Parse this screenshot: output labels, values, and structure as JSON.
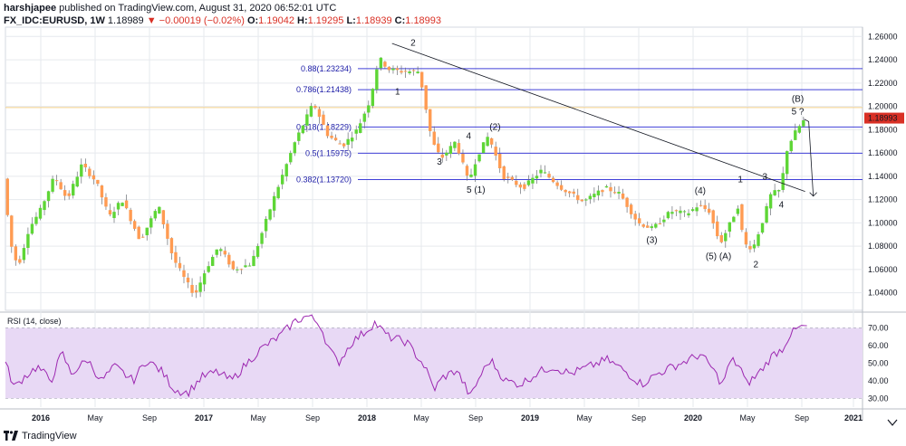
{
  "header": {
    "line1_user": "harshjapee",
    "line1_rest": "published on TradingView.com, August 31, 2020 06:52:01 UTC",
    "symbol": "FX_IDC:EURUSD, 1W",
    "last": "1.18989",
    "change": "▼ −0.00019 (−0.02%)",
    "o_label": "O:",
    "o": "1.19042",
    "h_label": "H:",
    "h": "1.19295",
    "l_label": "L:",
    "l": "1.18939",
    "c_label": "C:",
    "c": "1.18993"
  },
  "footer": {
    "brand": "TradingView"
  },
  "chart_data": [
    {
      "type": "candlestick",
      "symbol": "EURUSD",
      "interval": "1W",
      "title": "",
      "ylim": [
        1.025,
        1.268
      ],
      "y_ticks": [
        "1.26000",
        "1.24000",
        "1.22000",
        "1.20000",
        "1.18000",
        "1.16000",
        "1.14000",
        "1.12000",
        "1.10000",
        "1.08000",
        "1.06000",
        "1.04000"
      ],
      "x_labels": [
        "2016",
        "May",
        "Sep",
        "2017",
        "May",
        "Sep",
        "2018",
        "May",
        "Sep",
        "2019",
        "May",
        "Sep",
        "2020",
        "May",
        "Sep",
        "2021"
      ],
      "last_price_label": "1.18993",
      "path_points": [
        {
          "t": 0,
          "p": 1.138
        },
        {
          "t": 8,
          "p": 1.082
        },
        {
          "t": 16,
          "p": 1.062
        },
        {
          "t": 28,
          "p": 1.095
        },
        {
          "t": 40,
          "p": 1.11
        },
        {
          "t": 56,
          "p": 1.14
        },
        {
          "t": 70,
          "p": 1.12
        },
        {
          "t": 86,
          "p": 1.15
        },
        {
          "t": 102,
          "p": 1.135
        },
        {
          "t": 116,
          "p": 1.105
        },
        {
          "t": 130,
          "p": 1.12
        },
        {
          "t": 150,
          "p": 1.085
        },
        {
          "t": 170,
          "p": 1.115
        },
        {
          "t": 186,
          "p": 1.07
        },
        {
          "t": 200,
          "p": 1.05
        },
        {
          "t": 210,
          "p": 1.038
        },
        {
          "t": 222,
          "p": 1.06
        },
        {
          "t": 236,
          "p": 1.08
        },
        {
          "t": 252,
          "p": 1.06
        },
        {
          "t": 272,
          "p": 1.065
        },
        {
          "t": 296,
          "p": 1.12
        },
        {
          "t": 320,
          "p": 1.17
        },
        {
          "t": 340,
          "p": 1.203
        },
        {
          "t": 356,
          "p": 1.175
        },
        {
          "t": 372,
          "p": 1.166
        },
        {
          "t": 388,
          "p": 1.18
        },
        {
          "t": 402,
          "p": 1.205
        },
        {
          "t": 412,
          "p": 1.242
        },
        {
          "t": 422,
          "p": 1.232
        },
        {
          "t": 436,
          "p": 1.23
        },
        {
          "t": 456,
          "p": 1.23
        },
        {
          "t": 470,
          "p": 1.17
        },
        {
          "t": 480,
          "p": 1.155
        },
        {
          "t": 496,
          "p": 1.17
        },
        {
          "t": 510,
          "p": 1.135
        },
        {
          "t": 520,
          "p": 1.158
        },
        {
          "t": 532,
          "p": 1.175
        },
        {
          "t": 548,
          "p": 1.14
        },
        {
          "t": 570,
          "p": 1.13
        },
        {
          "t": 590,
          "p": 1.145
        },
        {
          "t": 612,
          "p": 1.13
        },
        {
          "t": 636,
          "p": 1.118
        },
        {
          "t": 660,
          "p": 1.13
        },
        {
          "t": 676,
          "p": 1.125
        },
        {
          "t": 696,
          "p": 1.1
        },
        {
          "t": 712,
          "p": 1.095
        },
        {
          "t": 732,
          "p": 1.11
        },
        {
          "t": 750,
          "p": 1.108
        },
        {
          "t": 762,
          "p": 1.115
        },
        {
          "t": 774,
          "p": 1.11
        },
        {
          "t": 786,
          "p": 1.082
        },
        {
          "t": 796,
          "p": 1.098
        },
        {
          "t": 806,
          "p": 1.115
        },
        {
          "t": 812,
          "p": 1.082
        },
        {
          "t": 822,
          "p": 1.078
        },
        {
          "t": 832,
          "p": 1.1
        },
        {
          "t": 842,
          "p": 1.125
        },
        {
          "t": 852,
          "p": 1.128
        },
        {
          "t": 860,
          "p": 1.165
        },
        {
          "t": 870,
          "p": 1.18
        },
        {
          "t": 880,
          "p": 1.1899
        }
      ]
    },
    {
      "type": "line",
      "title": "RSI (14, close)",
      "ylim": [
        25,
        78
      ],
      "y_ticks": [
        "70.00",
        "60.00",
        "50.00",
        "40.00",
        "30.00"
      ],
      "band": [
        30,
        70
      ],
      "path_points": [
        {
          "t": 0,
          "p": 50
        },
        {
          "t": 10,
          "p": 36
        },
        {
          "t": 20,
          "p": 42
        },
        {
          "t": 35,
          "p": 48
        },
        {
          "t": 50,
          "p": 40
        },
        {
          "t": 62,
          "p": 56
        },
        {
          "t": 72,
          "p": 44
        },
        {
          "t": 90,
          "p": 52
        },
        {
          "t": 105,
          "p": 40
        },
        {
          "t": 120,
          "p": 48
        },
        {
          "t": 140,
          "p": 40
        },
        {
          "t": 155,
          "p": 52
        },
        {
          "t": 172,
          "p": 45
        },
        {
          "t": 185,
          "p": 35
        },
        {
          "t": 200,
          "p": 33
        },
        {
          "t": 215,
          "p": 42
        },
        {
          "t": 232,
          "p": 45
        },
        {
          "t": 248,
          "p": 40
        },
        {
          "t": 265,
          "p": 50
        },
        {
          "t": 280,
          "p": 58
        },
        {
          "t": 300,
          "p": 65
        },
        {
          "t": 318,
          "p": 74
        },
        {
          "t": 332,
          "p": 77
        },
        {
          "t": 345,
          "p": 72
        },
        {
          "t": 355,
          "p": 58
        },
        {
          "t": 365,
          "p": 50
        },
        {
          "t": 380,
          "p": 62
        },
        {
          "t": 395,
          "p": 68
        },
        {
          "t": 405,
          "p": 73
        },
        {
          "t": 420,
          "p": 65
        },
        {
          "t": 440,
          "p": 62
        },
        {
          "t": 460,
          "p": 48
        },
        {
          "t": 470,
          "p": 35
        },
        {
          "t": 480,
          "p": 42
        },
        {
          "t": 495,
          "p": 46
        },
        {
          "t": 510,
          "p": 31
        },
        {
          "t": 522,
          "p": 44
        },
        {
          "t": 532,
          "p": 52
        },
        {
          "t": 548,
          "p": 40
        },
        {
          "t": 565,
          "p": 38
        },
        {
          "t": 585,
          "p": 45
        },
        {
          "t": 600,
          "p": 48
        },
        {
          "t": 620,
          "p": 44
        },
        {
          "t": 640,
          "p": 48
        },
        {
          "t": 660,
          "p": 52
        },
        {
          "t": 678,
          "p": 46
        },
        {
          "t": 698,
          "p": 38
        },
        {
          "t": 715,
          "p": 44
        },
        {
          "t": 732,
          "p": 48
        },
        {
          "t": 750,
          "p": 52
        },
        {
          "t": 762,
          "p": 55
        },
        {
          "t": 774,
          "p": 48
        },
        {
          "t": 786,
          "p": 38
        },
        {
          "t": 796,
          "p": 52
        },
        {
          "t": 806,
          "p": 48
        },
        {
          "t": 812,
          "p": 38
        },
        {
          "t": 822,
          "p": 42
        },
        {
          "t": 832,
          "p": 48
        },
        {
          "t": 842,
          "p": 55
        },
        {
          "t": 852,
          "p": 58
        },
        {
          "t": 860,
          "p": 66
        },
        {
          "t": 870,
          "p": 70
        },
        {
          "t": 880,
          "p": 71
        }
      ]
    }
  ],
  "fib_levels": [
    {
      "label": "0.88(1.23234)",
      "value": 1.23234
    },
    {
      "label": "0.786(1.21438)",
      "value": 1.21438
    },
    {
      "label": "0.618(1.18229)",
      "value": 1.18229
    },
    {
      "label": "0.5(1.15975)",
      "value": 1.15975
    },
    {
      "label": "0.382(1.13720)",
      "value": 1.1372
    }
  ],
  "wave_labels": [
    {
      "text": "1",
      "t": 430,
      "p": 1.21
    },
    {
      "text": "2",
      "t": 447,
      "p": 1.252
    },
    {
      "text": "3",
      "t": 476,
      "p": 1.15
    },
    {
      "text": "4",
      "t": 508,
      "p": 1.172
    },
    {
      "text": "5 (1)",
      "t": 516,
      "p": 1.126
    },
    {
      "text": "(2)",
      "t": 537,
      "p": 1.18
    },
    {
      "text": "(3)",
      "t": 709,
      "p": 1.083
    },
    {
      "text": "(4)",
      "t": 762,
      "p": 1.125
    },
    {
      "text": "(5) (A)",
      "t": 782,
      "p": 1.069
    },
    {
      "text": "1",
      "t": 806,
      "p": 1.135
    },
    {
      "text": "2",
      "t": 823,
      "p": 1.062
    },
    {
      "text": "3",
      "t": 833,
      "p": 1.137
    },
    {
      "text": "4",
      "t": 851,
      "p": 1.113
    },
    {
      "text": "(B)",
      "t": 869,
      "p": 1.204
    },
    {
      "text": "5 ?",
      "t": 869,
      "p": 1.193
    }
  ],
  "trendline": {
    "t1": 424,
    "p1": 1.254,
    "t2": 877,
    "p2": 1.127
  },
  "projection": {
    "t1": 876,
    "p1": 1.189,
    "t2": 881,
    "p2": 1.187,
    "t3": 886,
    "p3": 1.123
  },
  "colors": {
    "up": "#5ed636",
    "down": "#ff9b52",
    "fib": "#4040d8",
    "rsi_line": "#9c27b0",
    "rsi_fill": "#e8d9f5",
    "grid": "#e6e9ee",
    "last_price": "#d93025"
  }
}
